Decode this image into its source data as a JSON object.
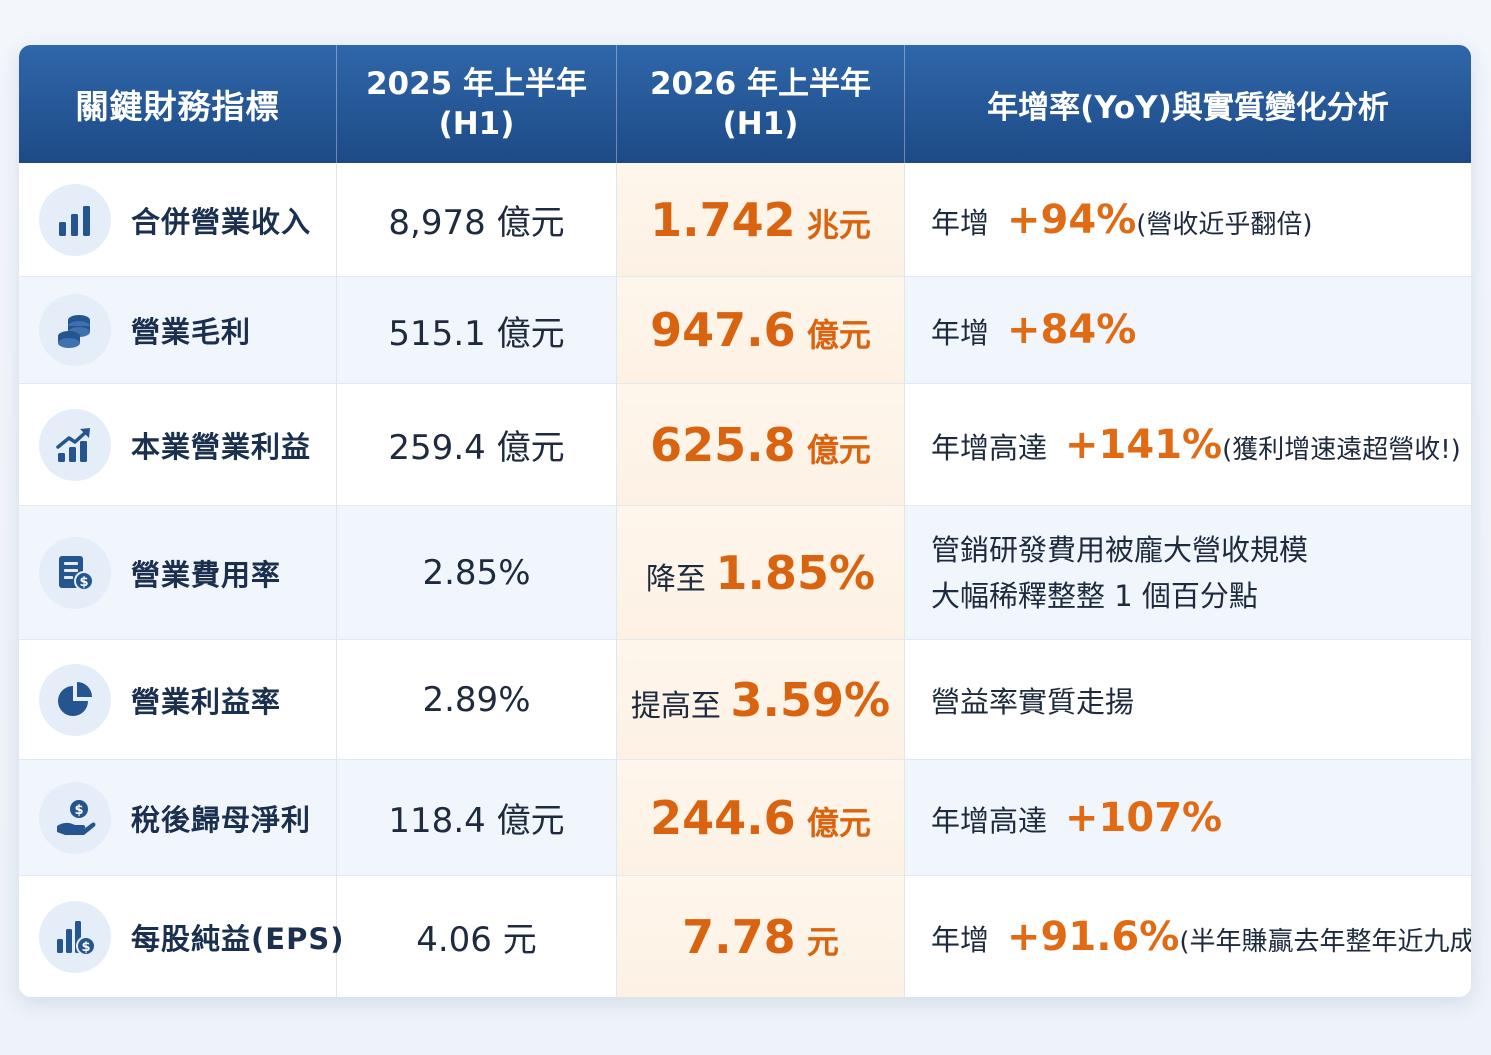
{
  "colors": {
    "header": "#1d4a86",
    "accent": "#e06b14",
    "highlight_col": "#fdf1e4"
  },
  "header": {
    "metric": "關鍵財務指標",
    "h2025_line1": "2025 年上半年",
    "h2025_line2": "(H1)",
    "h2026_line1": "2026 年上半年",
    "h2026_line2": "(H1)",
    "analysis": "年增率(YoY)與實質變化分析"
  },
  "rows": [
    {
      "icon": "bar-chart-icon",
      "metric": "合併營業收入",
      "v2025": "8,978 億元",
      "v2026_num": "1.742",
      "v2026_unit": " 兆元",
      "a_label": "年增",
      "a_pct": "+94%",
      "a_note": "(營收近乎翻倍)"
    },
    {
      "icon": "coin-stack-icon",
      "metric": "營業毛利",
      "v2025": "515.1 億元",
      "v2026_num": "947.6",
      "v2026_unit": " 億元",
      "a_label": "年增",
      "a_pct": "+84%",
      "a_note": ""
    },
    {
      "icon": "growth-chart-icon",
      "metric": "本業營業利益",
      "v2025": "259.4 億元",
      "v2026_num": "625.8",
      "v2026_unit": " 億元",
      "a_label": "年增高達",
      "a_pct": "+141%",
      "a_note": "(獲利增速遠超營收!)"
    },
    {
      "icon": "expense-doc-icon",
      "metric": "營業費用率",
      "v2025": "2.85%",
      "v2026_pre": "降至 ",
      "v2026_num": "1.85%",
      "a_line1": "管銷研發費用被龐大營收規模",
      "a_line2": "大幅稀釋整整 1 個百分點"
    },
    {
      "icon": "pie-chart-icon",
      "metric": "營業利益率",
      "v2025": "2.89%",
      "v2026_pre": "提高至 ",
      "v2026_num": "3.59%",
      "a_text": "營益率實質走揚"
    },
    {
      "icon": "hand-coin-icon",
      "metric": "稅後歸母淨利",
      "v2025": "118.4 億元",
      "v2026_num": "244.6",
      "v2026_unit": " 億元",
      "a_label": "年增高達",
      "a_pct": "+107%",
      "a_note": ""
    },
    {
      "icon": "eps-chart-icon",
      "metric": "每股純益(EPS)",
      "v2025": "4.06 元",
      "v2026_num": "7.78",
      "v2026_unit": " 元",
      "a_label": "年增",
      "a_pct": "+91.6%",
      "a_note": "(半年賺贏去年整年近九成!)"
    }
  ]
}
